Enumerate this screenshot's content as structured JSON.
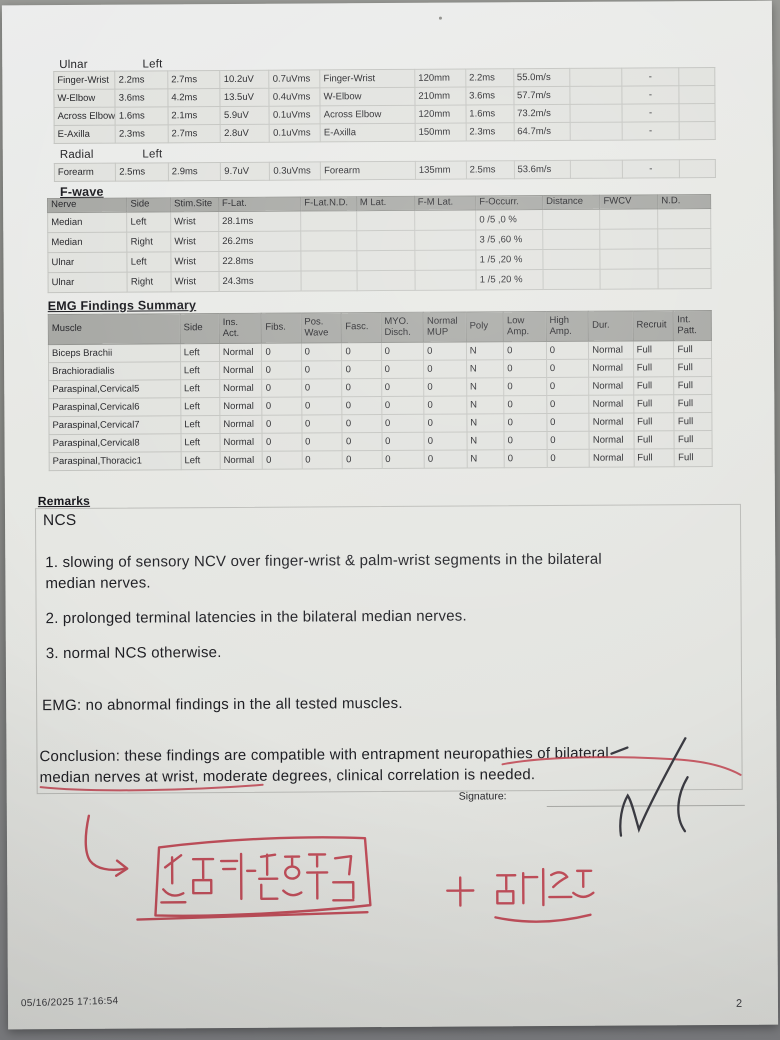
{
  "doc_type": "Nerve Conduction Study / EMG report (photographed page)",
  "colors": {
    "red_ink": "#bf4350",
    "pen_ink": "#3b3b42",
    "paper": "#e7e8e4",
    "table_header": "#a5a6a2"
  },
  "ncs": {
    "ulnar": {
      "nerve": "Ulnar",
      "side": "Left",
      "rows": [
        [
          "Finger-Wrist",
          "2.2ms",
          "2.7ms",
          "10.2uV",
          "0.7uVms",
          "Finger-Wrist",
          "120mm",
          "2.2ms",
          "55.0m/s",
          "",
          "-",
          ""
        ],
        [
          "W-Elbow",
          "3.6ms",
          "4.2ms",
          "13.5uV",
          "0.4uVms",
          "W-Elbow",
          "210mm",
          "3.6ms",
          "57.7m/s",
          "",
          "-",
          ""
        ],
        [
          "Across Elbow",
          "1.6ms",
          "2.1ms",
          "5.9uV",
          "0.1uVms",
          "Across Elbow",
          "120mm",
          "1.6ms",
          "73.2m/s",
          "",
          "-",
          ""
        ],
        [
          "E-Axilla",
          "2.3ms",
          "2.7ms",
          "2.8uV",
          "0.1uVms",
          "E-Axilla",
          "150mm",
          "2.3ms",
          "64.7m/s",
          "",
          "-",
          ""
        ]
      ]
    },
    "radial": {
      "nerve": "Radial",
      "side": "Left",
      "rows": [
        [
          "Forearm",
          "2.5ms",
          "2.9ms",
          "9.7uV",
          "0.3uVms",
          "Forearm",
          "135mm",
          "2.5ms",
          "53.6m/s",
          "",
          "-",
          ""
        ]
      ]
    }
  },
  "fwave": {
    "title": "F-wave",
    "headers": [
      "Nerve",
      "Side",
      "Stim.Site",
      "F-Lat.",
      "F-Lat.N.D.",
      "M Lat.",
      "F-M Lat.",
      "F-Occurr.",
      "Distance",
      "FWCV",
      "N.D."
    ],
    "rows": [
      [
        "Median",
        "Left",
        "Wrist",
        "28.1ms",
        "",
        "",
        "",
        "0  /5  ,0   %",
        "",
        "",
        ""
      ],
      [
        "Median",
        "Right",
        "Wrist",
        "26.2ms",
        "",
        "",
        "",
        "3  /5  ,60  %",
        "",
        "",
        ""
      ],
      [
        "Ulnar",
        "Left",
        "Wrist",
        "22.8ms",
        "",
        "",
        "",
        "1  /5  ,20  %",
        "",
        "",
        ""
      ],
      [
        "Ulnar",
        "Right",
        "Wrist",
        "24.3ms",
        "",
        "",
        "",
        "1  /5  ,20  %",
        "",
        "",
        ""
      ]
    ]
  },
  "emg": {
    "title": "EMG Findings Summary",
    "headers": [
      "Muscle",
      "Side",
      "Ins.\nAct.",
      "Fibs.",
      "Pos.\nWave",
      "Fasc.",
      "MYO.\nDisch.",
      "Normal\nMUP",
      "Poly",
      "Low\nAmp.",
      "High\nAmp.",
      "Dur.",
      "Recruit",
      "Int.\nPatt."
    ],
    "rows": [
      [
        "Biceps Brachii",
        "Left",
        "Normal",
        "0",
        "0",
        "0",
        "0",
        "0",
        "N",
        "0",
        "0",
        "Normal",
        "Full",
        "Full"
      ],
      [
        "Brachioradialis",
        "Left",
        "Normal",
        "0",
        "0",
        "0",
        "0",
        "0",
        "N",
        "0",
        "0",
        "Normal",
        "Full",
        "Full"
      ],
      [
        "Paraspinal,Cervical5",
        "Left",
        "Normal",
        "0",
        "0",
        "0",
        "0",
        "0",
        "N",
        "0",
        "0",
        "Normal",
        "Full",
        "Full"
      ],
      [
        "Paraspinal,Cervical6",
        "Left",
        "Normal",
        "0",
        "0",
        "0",
        "0",
        "0",
        "N",
        "0",
        "0",
        "Normal",
        "Full",
        "Full"
      ],
      [
        "Paraspinal,Cervical7",
        "Left",
        "Normal",
        "0",
        "0",
        "0",
        "0",
        "0",
        "N",
        "0",
        "0",
        "Normal",
        "Full",
        "Full"
      ],
      [
        "Paraspinal,Cervical8",
        "Left",
        "Normal",
        "0",
        "0",
        "0",
        "0",
        "0",
        "N",
        "0",
        "0",
        "Normal",
        "Full",
        "Full"
      ],
      [
        "Paraspinal,Thoracic1",
        "Left",
        "Normal",
        "0",
        "0",
        "0",
        "0",
        "0",
        "N",
        "0",
        "0",
        "Normal",
        "Full",
        "Full"
      ]
    ]
  },
  "remarks": {
    "title": "Remarks",
    "heading": "NCS",
    "lines": {
      "f1a": "1. slowing of sensory NCV over finger-wrist & palm-wrist segments in the bilateral",
      "f1b": "median nerves.",
      "f2": "2. prolonged terminal latencies in the bilateral median nerves.",
      "f3": "3. normal NCS otherwise.",
      "emg": "EMG: no abnormal findings in the all tested muscles.",
      "c1": "Conclusion: these findings are compatible with entrapment neuropathies of bilateral",
      "c2": "median nerves at wrist, moderate degrees, clinical correlation is needed."
    }
  },
  "signature": {
    "label": "Signature:"
  },
  "handwriting": {
    "boxed_text": "손목터널증후군",
    "side_text": "+ 목디스크"
  },
  "footer": {
    "timestamp": "05/16/2025 17:16:54",
    "page_number": "2"
  }
}
